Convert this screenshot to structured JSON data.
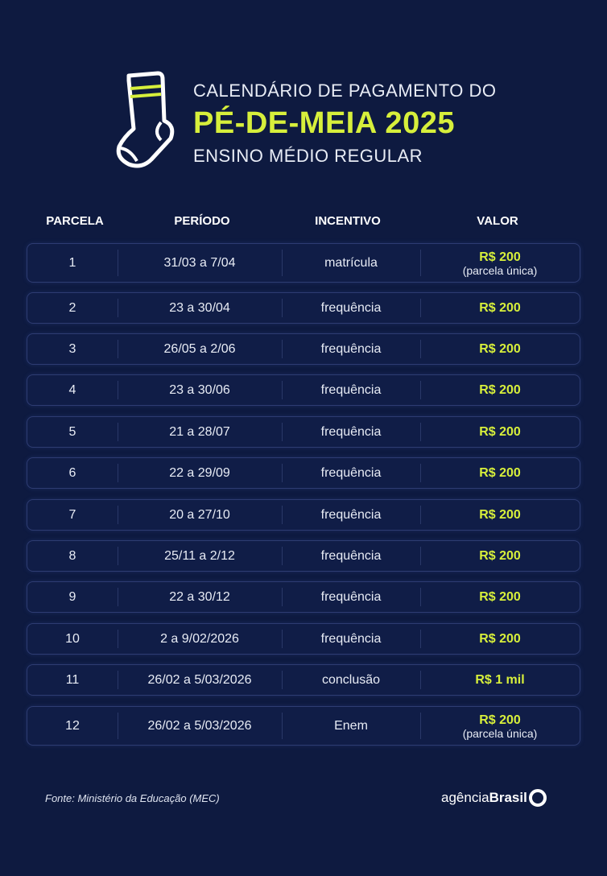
{
  "header": {
    "line1": "CALENDÁRIO DE PAGAMENTO DO",
    "line2": "PÉ-DE-MEIA 2025",
    "line3": "ENSINO MÉDIO REGULAR",
    "icon": "sock-icon"
  },
  "colors": {
    "background": "#0e1a40",
    "accent": "#d7ef3b"
  },
  "table": {
    "headers": [
      "PARCELA",
      "PERÍODO",
      "INCENTIVO",
      "VALOR"
    ],
    "rows": [
      {
        "parcela": "1",
        "periodo": "31/03 a 7/04",
        "incentivo": "matrícula",
        "valor": "R$ 200",
        "nota": "(parcela única)"
      },
      {
        "parcela": "2",
        "periodo": "23 a 30/04",
        "incentivo": "frequência",
        "valor": "R$ 200"
      },
      {
        "parcela": "3",
        "periodo": "26/05 a 2/06",
        "incentivo": "frequência",
        "valor": "R$ 200"
      },
      {
        "parcela": "4",
        "periodo": "23 a 30/06",
        "incentivo": "frequência",
        "valor": "R$ 200"
      },
      {
        "parcela": "5",
        "periodo": "21 a 28/07",
        "incentivo": "frequência",
        "valor": "R$ 200"
      },
      {
        "parcela": "6",
        "periodo": "22 a 29/09",
        "incentivo": "frequência",
        "valor": "R$ 200"
      },
      {
        "parcela": "7",
        "periodo": "20 a 27/10",
        "incentivo": "frequência",
        "valor": "R$ 200"
      },
      {
        "parcela": "8",
        "periodo": "25/11 a 2/12",
        "incentivo": "frequência",
        "valor": "R$ 200"
      },
      {
        "parcela": "9",
        "periodo": "22 a 30/12",
        "incentivo": "frequência",
        "valor": "R$ 200"
      },
      {
        "parcela": "10",
        "periodo": "2 a 9/02/2026",
        "incentivo": "frequência",
        "valor": "R$ 200"
      },
      {
        "parcela": "11",
        "periodo": "26/02 a 5/03/2026",
        "incentivo": "conclusão",
        "valor": "R$ 1 mil"
      },
      {
        "parcela": "12",
        "periodo": "26/02 a 5/03/2026",
        "incentivo": "Enem",
        "valor": "R$ 200",
        "nota": "(parcela única)"
      }
    ]
  },
  "footer": {
    "source": "Fonte: Ministério da Educação (MEC)",
    "logo_light": "agência",
    "logo_bold": "Brasil"
  }
}
